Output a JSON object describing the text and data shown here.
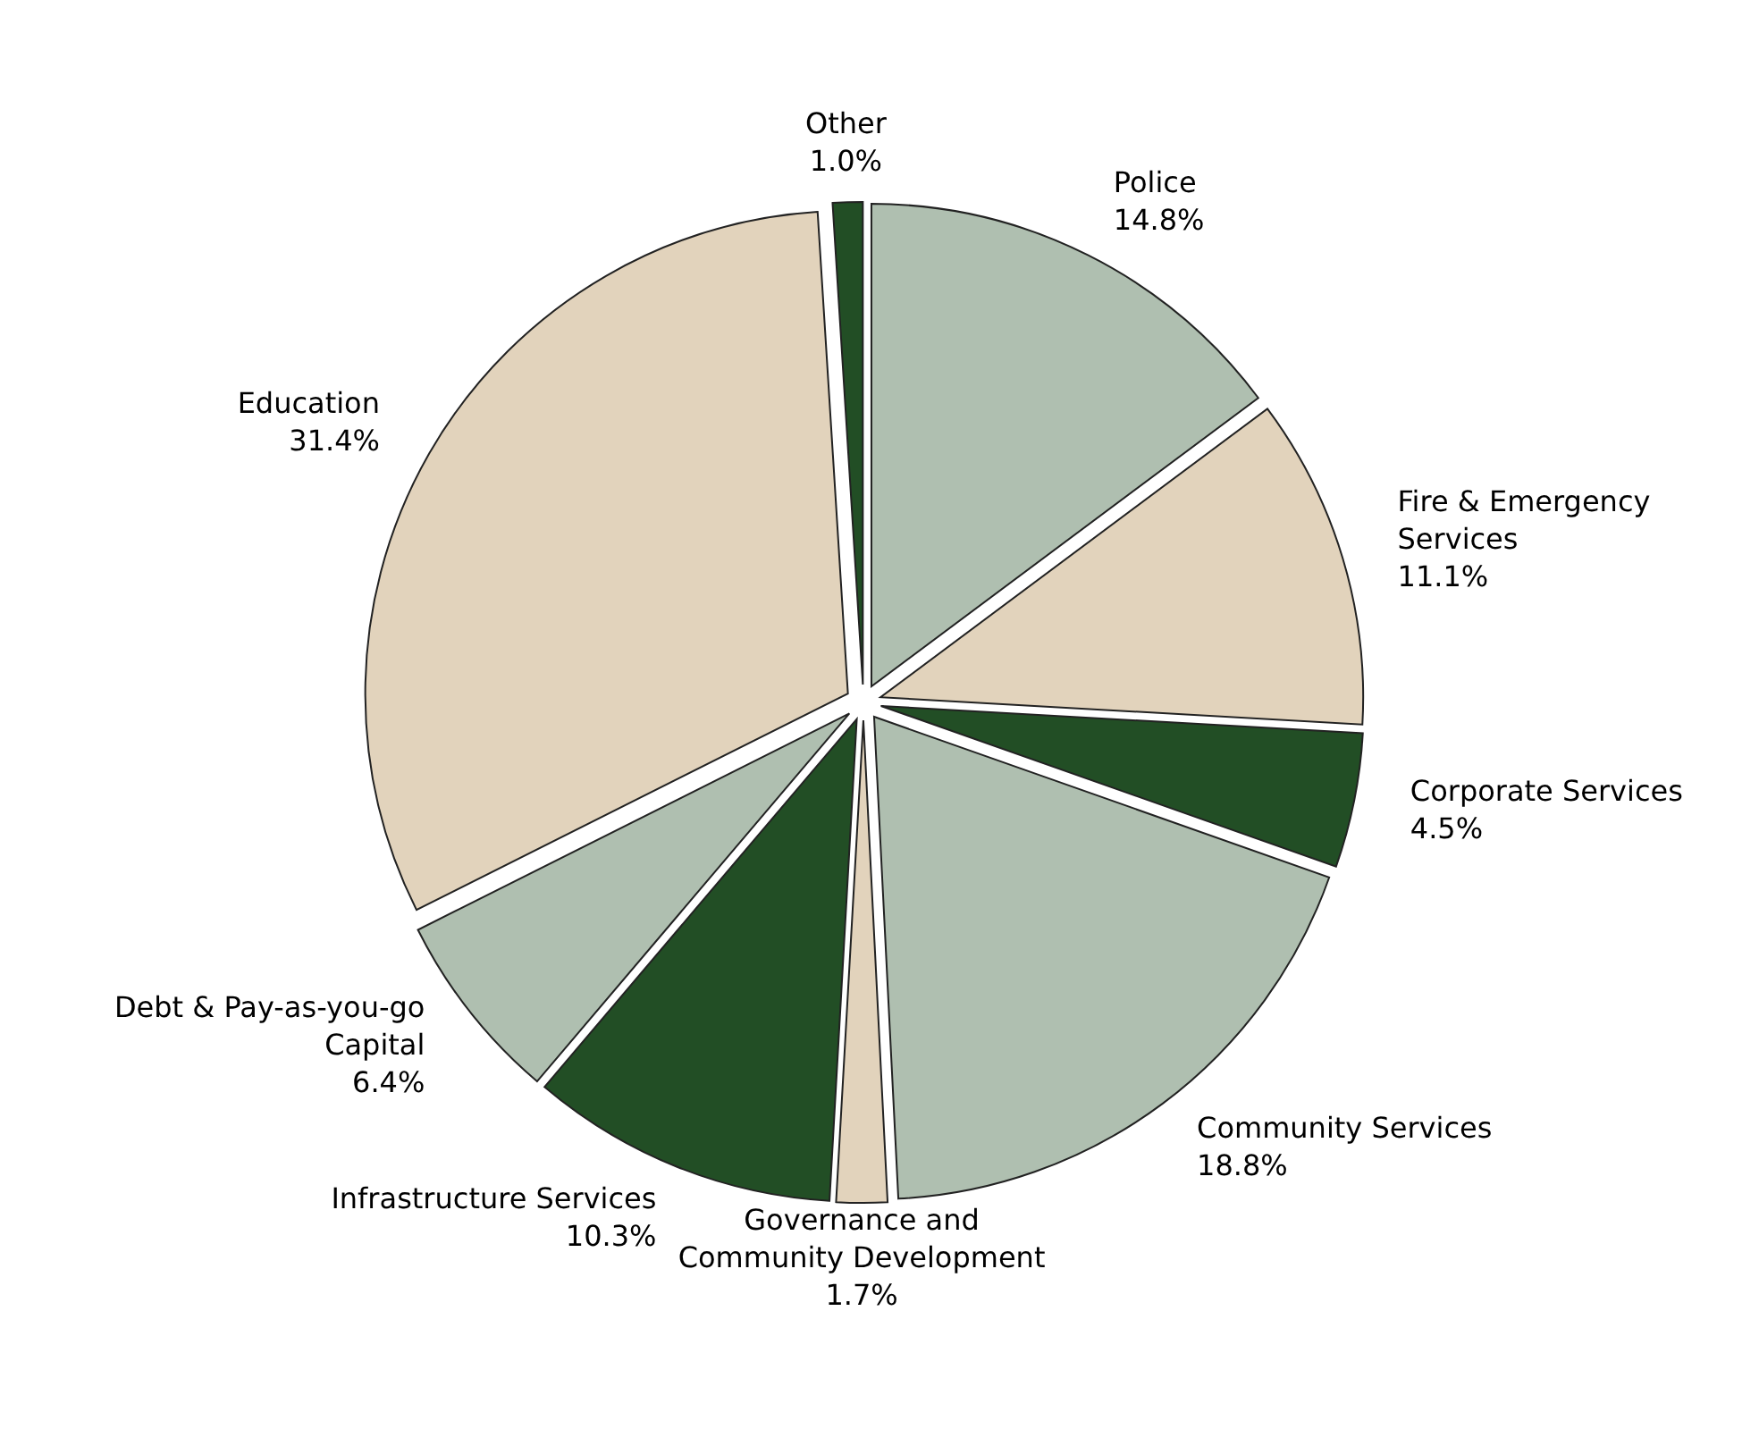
{
  "chart_data": {
    "type": "pie",
    "categories": [
      "Police",
      "Fire & Emergency Services",
      "Corporate Services",
      "Community Services",
      "Governance and Community Development",
      "Infrastructure Services",
      "Debt & Pay-as-you-go Capital",
      "Education",
      "Other"
    ],
    "values": [
      14.8,
      11.1,
      4.5,
      18.8,
      1.7,
      10.3,
      6.4,
      31.4,
      1.0
    ],
    "colors": [
      "#afbfb0",
      "#e2d3bc",
      "#224e25",
      "#afbfb0",
      "#e2d3bc",
      "#224e25",
      "#afbfb0",
      "#e2d3bc",
      "#224e25"
    ],
    "value_labels": [
      "14.8%",
      "11.1%",
      "4.5%",
      "18.8%",
      "1.7%",
      "10.3%",
      "6.4%",
      "31.4%",
      "1.0%"
    ]
  }
}
